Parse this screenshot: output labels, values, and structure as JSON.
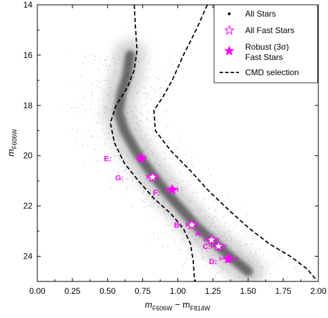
{
  "chart_data": {
    "type": "scatter",
    "xlim": [
      0.0,
      2.0
    ],
    "ylim": [
      25.0,
      14.0
    ],
    "y_inverted": true,
    "x_ticks": [
      0.0,
      0.25,
      0.5,
      0.75,
      1.0,
      1.25,
      1.5,
      1.75,
      2.0
    ],
    "x_tick_labels": [
      "0.00",
      "0.25",
      "0.50",
      "0.75",
      "1.00",
      "1.25",
      "1.50",
      "1.75",
      "2.00"
    ],
    "y_ticks": [
      14,
      16,
      18,
      20,
      22,
      24
    ],
    "y_tick_labels": [
      "14",
      "16",
      "18",
      "20",
      "22",
      "24"
    ],
    "xlabel": {
      "m": "m",
      "sub1": "F606W",
      "mid": " − m",
      "sub2": "F814W"
    },
    "ylabel": {
      "m": "m",
      "sub": "F606W"
    },
    "grid": false,
    "legend_position": "top-right",
    "legend": [
      {
        "marker": "dot",
        "label": "All Stars"
      },
      {
        "marker": "open-star",
        "label": "All Fast Stars"
      },
      {
        "marker": "filled-star",
        "label_lines": [
          "Robust (3σ)",
          "Fast Stars"
        ]
      },
      {
        "marker": "dashed-line",
        "label": "CMD selection"
      }
    ],
    "accent_color": "#ff00ff",
    "fast_stars": [
      {
        "label": "A:",
        "color_index": 1.24,
        "magnitude": 23.35,
        "robust": false,
        "xerr": 0.05,
        "yerr": 0.12
      },
      {
        "label": "B:",
        "color_index": 1.1,
        "magnitude": 22.75,
        "robust": false,
        "xerr": 0.04,
        "yerr": 0.12
      },
      {
        "label": "C:",
        "color_index": 1.29,
        "magnitude": 23.6,
        "robust": false,
        "xerr": 0.05,
        "yerr": 0.13
      },
      {
        "label": "D:",
        "color_index": 1.36,
        "magnitude": 24.1,
        "robust": true,
        "xerr": 0.06,
        "yerr": 0.13
      },
      {
        "label": "E:",
        "color_index": 0.74,
        "magnitude": 20.1,
        "robust": true,
        "xerr": 0.03,
        "yerr": 0.08
      },
      {
        "label": "F:",
        "color_index": 0.96,
        "magnitude": 21.35,
        "robust": true,
        "xerr": 0.04,
        "yerr": 0.1
      },
      {
        "label": "G:",
        "color_index": 0.82,
        "magnitude": 20.85,
        "robust": false,
        "xerr": 0.04,
        "yerr": 0.1
      }
    ],
    "cmd_selection": {
      "left_boundary": [
        [
          0.69,
          14.0
        ],
        [
          0.7,
          15.0
        ],
        [
          0.71,
          15.8
        ],
        [
          0.69,
          16.6
        ],
        [
          0.64,
          17.3
        ],
        [
          0.56,
          18.0
        ],
        [
          0.52,
          18.7
        ],
        [
          0.55,
          19.5
        ],
        [
          0.62,
          20.3
        ],
        [
          0.72,
          21.0
        ],
        [
          0.83,
          21.7
        ],
        [
          0.95,
          22.3
        ],
        [
          1.04,
          22.9
        ],
        [
          1.09,
          23.5
        ],
        [
          1.11,
          24.2
        ],
        [
          1.12,
          25.0
        ]
      ],
      "right_boundary": [
        [
          1.21,
          14.0
        ],
        [
          1.13,
          15.0
        ],
        [
          1.04,
          16.0
        ],
        [
          0.96,
          17.0
        ],
        [
          0.89,
          17.7
        ],
        [
          0.83,
          18.2
        ],
        [
          0.84,
          19.0
        ],
        [
          0.95,
          19.8
        ],
        [
          1.09,
          20.6
        ],
        [
          1.22,
          21.4
        ],
        [
          1.37,
          22.2
        ],
        [
          1.51,
          22.9
        ],
        [
          1.65,
          23.5
        ],
        [
          1.8,
          24.0
        ],
        [
          1.92,
          24.5
        ],
        [
          1.98,
          24.9
        ]
      ]
    },
    "all_stars_ridge": [
      [
        0.66,
        16.0
      ],
      [
        0.64,
        16.8
      ],
      [
        0.6,
        17.5
      ],
      [
        0.58,
        18.3
      ],
      [
        0.62,
        19.0
      ],
      [
        0.7,
        19.8
      ],
      [
        0.8,
        20.6
      ],
      [
        0.91,
        21.4
      ],
      [
        1.02,
        22.1
      ],
      [
        1.13,
        22.8
      ],
      [
        1.25,
        23.4
      ],
      [
        1.37,
        24.0
      ],
      [
        1.5,
        24.6
      ]
    ]
  }
}
